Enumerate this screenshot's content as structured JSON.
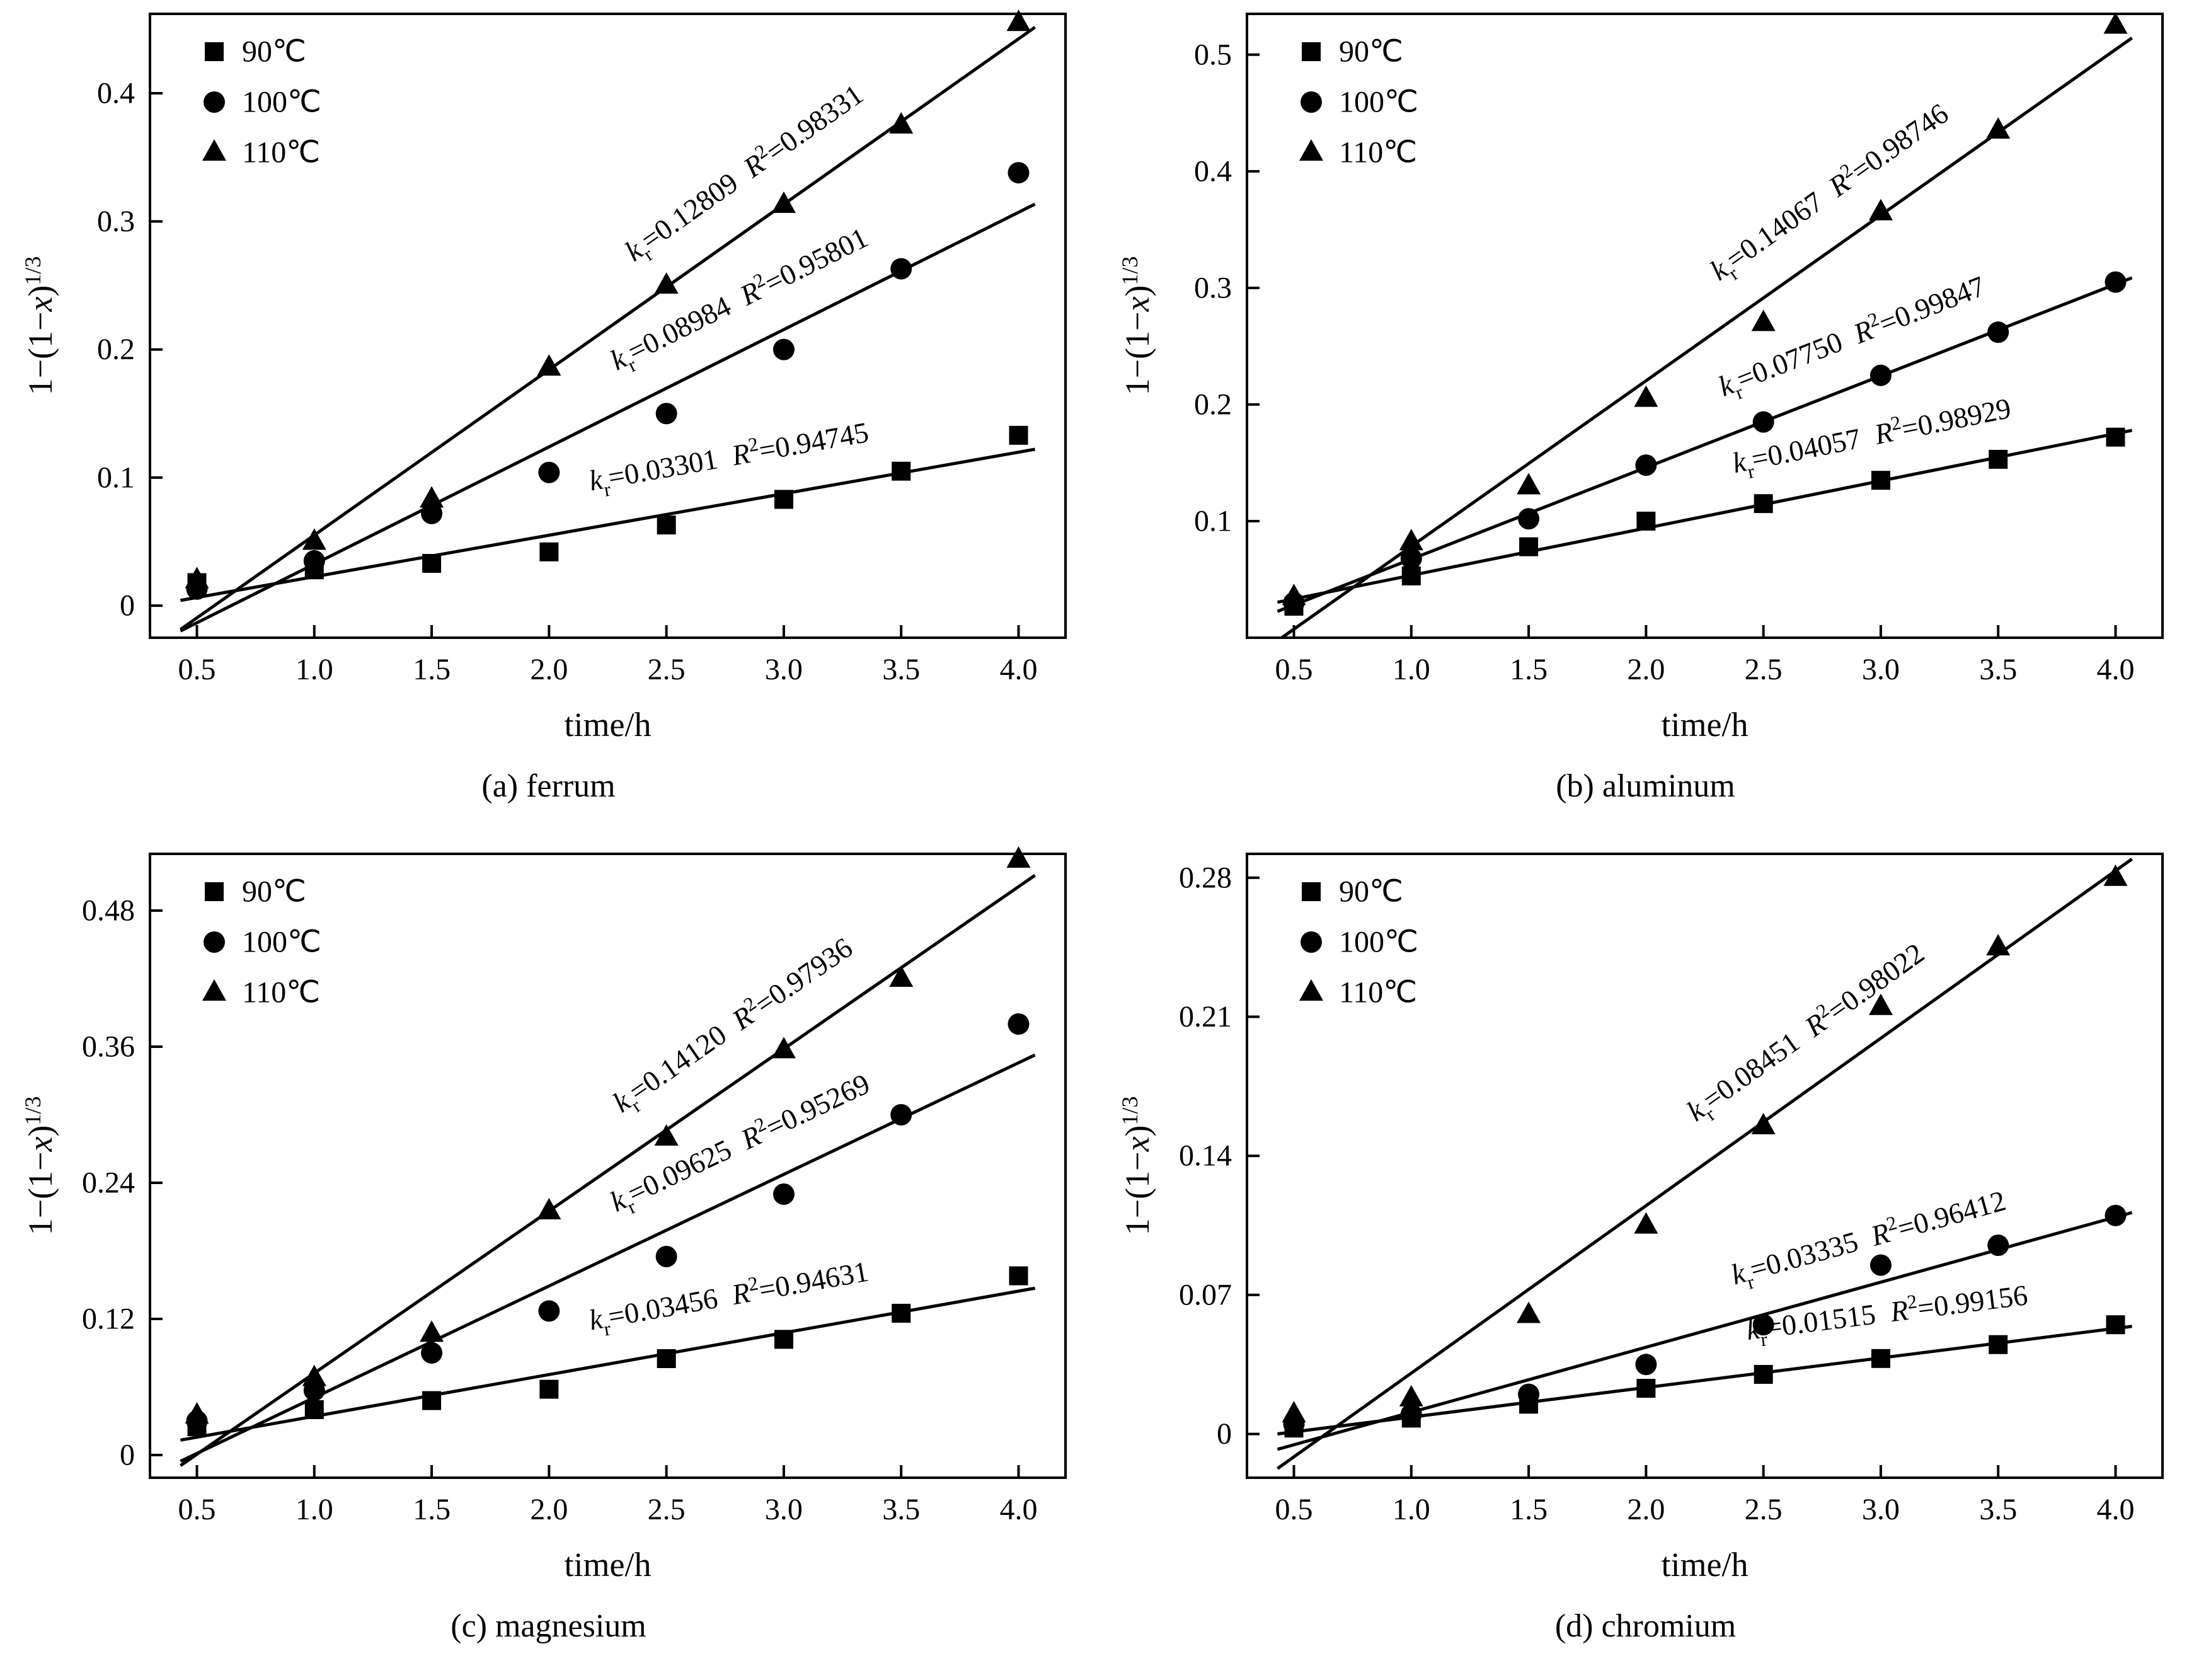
{
  "page": {
    "background": "#ffffff",
    "ink": "#000000"
  },
  "symbols": {
    "k_var": "k",
    "k_sub": "r",
    "r_var": "R",
    "r_sup": "2",
    "equals": "="
  },
  "chart_data": [
    {
      "type": "scatter",
      "caption": "(a) ferrum",
      "xlabel": "time/h",
      "ylabel": {
        "pre": "1−(1−",
        "var": "x",
        "post": ")",
        "sup": "1/3"
      },
      "x": [
        0.5,
        1.0,
        1.5,
        2.0,
        2.5,
        3.0,
        3.5,
        4.0
      ],
      "xlim": [
        0.3,
        4.2
      ],
      "xticks": [
        0.5,
        1.0,
        1.5,
        2.0,
        2.5,
        3.0,
        3.5,
        4.0
      ],
      "xtick_labels": [
        "0.5",
        "1.0",
        "1.5",
        "2.0",
        "2.5",
        "3.0",
        "3.5",
        "4.0"
      ],
      "ylim": [
        -0.025,
        0.462
      ],
      "yticks": [
        0,
        0.1,
        0.2,
        0.3,
        0.4
      ],
      "ytick_labels": [
        "0",
        "0.1",
        "0.2",
        "0.3",
        "0.4"
      ],
      "legend_position": "top-left",
      "grid": false,
      "series": [
        {
          "name": "90℃",
          "marker": "square",
          "values": [
            0.018,
            0.028,
            0.033,
            0.042,
            0.063,
            0.083,
            0.105,
            0.133
          ],
          "kr": "0.03301",
          "r2": "0.94745",
          "ann_x": 2.8,
          "ann_off": 58
        },
        {
          "name": "100℃",
          "marker": "circle",
          "values": [
            0.013,
            0.035,
            0.072,
            0.104,
            0.15,
            0.2,
            0.263,
            0.338
          ],
          "kr": "0.08984",
          "r2": "0.95801",
          "ann_x": 2.9,
          "ann_off": 60
        },
        {
          "name": "110℃",
          "marker": "triangle",
          "values": [
            0.02,
            0.05,
            0.083,
            0.186,
            0.25,
            0.313,
            0.375,
            0.455
          ],
          "kr": "0.12809",
          "r2": "0.98331",
          "ann_x": 2.95,
          "ann_off": 62
        }
      ]
    },
    {
      "type": "scatter",
      "caption": "(b) aluminum",
      "xlabel": "time/h",
      "ylabel": {
        "pre": "1−(1−",
        "var": "x",
        "post": ")",
        "sup": "1/3"
      },
      "x": [
        0.5,
        1.0,
        1.5,
        2.0,
        2.5,
        3.0,
        3.5,
        4.0
      ],
      "xlim": [
        0.3,
        4.2
      ],
      "xticks": [
        0.5,
        1.0,
        1.5,
        2.0,
        2.5,
        3.0,
        3.5,
        4.0
      ],
      "xtick_labels": [
        "0.5",
        "1.0",
        "1.5",
        "2.0",
        "2.5",
        "3.0",
        "3.5",
        "4.0"
      ],
      "ylim": [
        0.0,
        0.535
      ],
      "yticks": [
        0.1,
        0.2,
        0.3,
        0.4,
        0.5
      ],
      "ytick_labels": [
        "0.1",
        "0.2",
        "0.3",
        "0.4",
        "0.5"
      ],
      "legend_position": "top-left",
      "grid": false,
      "series": [
        {
          "name": "90℃",
          "marker": "square",
          "values": [
            0.027,
            0.053,
            0.078,
            0.1,
            0.115,
            0.135,
            0.153,
            0.172
          ],
          "kr": "0.04057",
          "r2": "0.98929",
          "ann_x": 3.0,
          "ann_off": 58
        },
        {
          "name": "100℃",
          "marker": "circle",
          "values": [
            0.03,
            0.068,
            0.102,
            0.148,
            0.185,
            0.225,
            0.262,
            0.305
          ],
          "kr": "0.07750",
          "r2": "0.99847",
          "ann_x": 2.95,
          "ann_off": 60
        },
        {
          "name": "110℃",
          "marker": "triangle",
          "values": [
            0.035,
            0.082,
            0.13,
            0.205,
            0.27,
            0.365,
            0.435,
            0.525
          ],
          "kr": "0.14067",
          "r2": "0.98746",
          "ann_x": 2.9,
          "ann_off": 62
        }
      ]
    },
    {
      "type": "scatter",
      "caption": "(c) magnesium",
      "xlabel": "time/h",
      "ylabel": {
        "pre": "1−(1−",
        "var": "x",
        "post": ")",
        "sup": "1/3"
      },
      "x": [
        0.5,
        1.0,
        1.5,
        2.0,
        2.5,
        3.0,
        3.5,
        4.0
      ],
      "xlim": [
        0.3,
        4.2
      ],
      "xticks": [
        0.5,
        1.0,
        1.5,
        2.0,
        2.5,
        3.0,
        3.5,
        4.0
      ],
      "xtick_labels": [
        "0.5",
        "1.0",
        "1.5",
        "2.0",
        "2.5",
        "3.0",
        "3.5",
        "4.0"
      ],
      "ylim": [
        -0.02,
        0.53
      ],
      "yticks": [
        0,
        0.12,
        0.24,
        0.36,
        0.48
      ],
      "ytick_labels": [
        "0",
        "0.12",
        "0.24",
        "0.36",
        "0.48"
      ],
      "legend_position": "top-left",
      "grid": false,
      "series": [
        {
          "name": "90℃",
          "marker": "square",
          "values": [
            0.025,
            0.04,
            0.048,
            0.058,
            0.085,
            0.102,
            0.125,
            0.158
          ],
          "kr": "0.03456",
          "r2": "0.94631",
          "ann_x": 2.8,
          "ann_off": 58
        },
        {
          "name": "100℃",
          "marker": "circle",
          "values": [
            0.03,
            0.057,
            0.09,
            0.127,
            0.175,
            0.23,
            0.3,
            0.38
          ],
          "kr": "0.09625",
          "r2": "0.95269",
          "ann_x": 2.9,
          "ann_off": 60
        },
        {
          "name": "110℃",
          "marker": "triangle",
          "values": [
            0.035,
            0.068,
            0.107,
            0.215,
            0.28,
            0.357,
            0.42,
            0.525
          ],
          "kr": "0.14120",
          "r2": "0.97936",
          "ann_x": 2.9,
          "ann_off": 62
        }
      ]
    },
    {
      "type": "scatter",
      "caption": "(d) chromium",
      "xlabel": "time/h",
      "ylabel": {
        "pre": "1−(1−",
        "var": "x",
        "post": ")",
        "sup": "1/3"
      },
      "x": [
        0.5,
        1.0,
        1.5,
        2.0,
        2.5,
        3.0,
        3.5,
        4.0
      ],
      "xlim": [
        0.3,
        4.2
      ],
      "xticks": [
        0.5,
        1.0,
        1.5,
        2.0,
        2.5,
        3.0,
        3.5,
        4.0
      ],
      "xtick_labels": [
        "0.5",
        "1.0",
        "1.5",
        "2.0",
        "2.5",
        "3.0",
        "3.5",
        "4.0"
      ],
      "ylim": [
        -0.022,
        0.292
      ],
      "yticks": [
        0,
        0.07,
        0.14,
        0.21,
        0.28
      ],
      "ytick_labels": [
        "0",
        "0.07",
        "0.14",
        "0.21",
        "0.28"
      ],
      "legend_position": "top-left",
      "grid": false,
      "series": [
        {
          "name": "90℃",
          "marker": "square",
          "values": [
            0.003,
            0.008,
            0.015,
            0.023,
            0.03,
            0.038,
            0.045,
            0.055
          ],
          "kr": "0.01515",
          "r2": "0.99156",
          "ann_x": 3.05,
          "ann_off": 55
        },
        {
          "name": "100℃",
          "marker": "circle",
          "values": [
            0.005,
            0.01,
            0.02,
            0.035,
            0.055,
            0.085,
            0.095,
            0.11
          ],
          "kr": "0.03335",
          "r2": "0.96412",
          "ann_x": 3.0,
          "ann_off": 58
        },
        {
          "name": "110℃",
          "marker": "triangle",
          "values": [
            0.01,
            0.018,
            0.06,
            0.105,
            0.155,
            0.215,
            0.245,
            0.28
          ],
          "kr": "0.08451",
          "r2": "0.98022",
          "ann_x": 2.8,
          "ann_off": 62
        }
      ]
    }
  ]
}
